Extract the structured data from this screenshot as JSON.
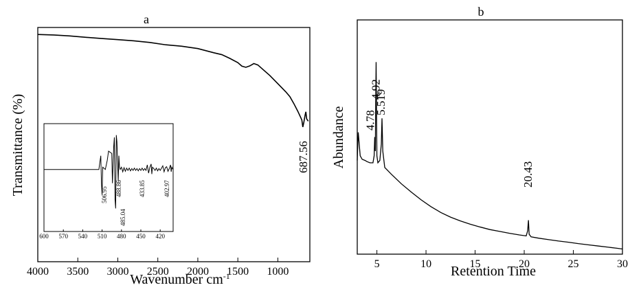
{
  "chart_data": [
    {
      "panel": "a",
      "type": "line",
      "xlabel": "Wavenumber cm",
      "xlabel_sup": "-1",
      "ylabel": "Transmittance (%)",
      "xlim": [
        4000,
        600
      ],
      "ylim": [
        0,
        100
      ],
      "x_ticks": [
        4000,
        3500,
        3000,
        2500,
        2000,
        1500,
        1000
      ],
      "grid": false,
      "series": [
        {
          "x": [
            4000,
            3800,
            3600,
            3400,
            3200,
            3000,
            2800,
            2600,
            2400,
            2200,
            2000,
            1800,
            1700,
            1600,
            1500,
            1450,
            1400,
            1350,
            1300,
            1250,
            1200,
            1100,
            1000,
            900,
            850,
            800,
            750,
            720,
            700,
            688,
            675,
            660,
            650,
            640,
            620
          ],
          "y": [
            97,
            96.8,
            96.4,
            95.8,
            95.3,
            94.8,
            94.3,
            93.6,
            92.6,
            92,
            91,
            89.2,
            88.4,
            86.8,
            85,
            83.5,
            83,
            83.6,
            84.6,
            84,
            82.5,
            79.5,
            76,
            72.5,
            70.5,
            67.5,
            64.2,
            62,
            60.5,
            57.5,
            59.5,
            62.5,
            64,
            61,
            60
          ]
        }
      ],
      "annotations": [
        {
          "text": "687.56",
          "x": 688
        }
      ],
      "inset": {
        "type": "line",
        "xlim": [
          600,
          400
        ],
        "ylim": [
          -1,
          1
        ],
        "x_ticks": [
          600,
          570,
          540,
          510,
          480,
          450,
          420
        ],
        "peak_labels": [
          "506.95",
          "488.86",
          "485.04",
          "433.85",
          "402.97"
        ],
        "series": [
          {
            "x": [
              600,
              515,
              513,
              512,
              511,
              510,
              509,
              505,
              502,
              501,
              500,
              495,
              494,
              493,
              492,
              491,
              490,
              489,
              488,
              487,
              486,
              485,
              484,
              483,
              482,
              480,
              478,
              476,
              474,
              472,
              470,
              468,
              466,
              464,
              462,
              460,
              458,
              456,
              454,
              452,
              450,
              448,
              446,
              444,
              442,
              440,
              438,
              436,
              434,
              433,
              432,
              430,
              428,
              426,
              424,
              422,
              420,
              418,
              416,
              414,
              412,
              410,
              408,
              406,
              404,
              403,
              402,
              401,
              400
            ],
            "y": [
              0,
              0,
              0.2,
              0.3,
              -0.3,
              -0.55,
              0.05,
              0,
              0.2,
              0.3,
              0.4,
              0.35,
              -0.3,
              0.1,
              0.5,
              0.7,
              -0.65,
              -0.85,
              0.75,
              0.6,
              0.15,
              -0.25,
              0.3,
              0.05,
              0,
              0.05,
              -0.05,
              0.04,
              -0.04,
              0.03,
              -0.02,
              0.03,
              -0.03,
              0.02,
              -0.02,
              0.03,
              -0.02,
              0.02,
              -0.03,
              0.02,
              -0.02,
              0.03,
              -0.02,
              0.02,
              -0.02,
              0.1,
              -0.08,
              0.05,
              0.12,
              -0.1,
              0.05,
              0.02,
              -0.02,
              0.03,
              -0.03,
              0.02,
              -0.02,
              0.03,
              0.08,
              -0.05,
              0.04,
              0.06,
              -0.04,
              0.02,
              0.1,
              -0.05,
              0.05,
              0.02,
              0
            ]
          }
        ]
      }
    },
    {
      "panel": "b",
      "type": "line",
      "xlabel": "Retention Time",
      "ylabel": "Abundance",
      "xlim": [
        3,
        30
      ],
      "ylim": [
        0,
        100
      ],
      "x_ticks": [
        5,
        10,
        15,
        20,
        25,
        30
      ],
      "grid": false,
      "series": [
        {
          "x": [
            3.0,
            3.1,
            3.2,
            3.3,
            3.5,
            3.8,
            4.0,
            4.3,
            4.6,
            4.72,
            4.78,
            4.84,
            4.88,
            4.92,
            4.96,
            5.0,
            5.1,
            5.3,
            5.45,
            5.519,
            5.6,
            5.8,
            6.5,
            7.5,
            8.5,
            9.5,
            10.5,
            11.5,
            12.5,
            13.5,
            14.5,
            15.5,
            16.5,
            17.5,
            18.5,
            19.5,
            20.2,
            20.35,
            20.43,
            20.5,
            20.7,
            21.5,
            22.5,
            23.5,
            24.5,
            25.5,
            26.5,
            27.5,
            28.5,
            29.5,
            30
          ],
          "y": [
            40,
            52,
            47,
            42,
            40.5,
            40,
            39.5,
            39,
            39,
            42,
            50,
            44,
            65,
            82,
            62,
            42,
            39,
            40,
            47,
            58,
            44,
            37,
            34,
            30,
            26.5,
            23.2,
            20.3,
            17.8,
            15.8,
            14.2,
            12.8,
            11.6,
            10.5,
            9.7,
            8.9,
            8.2,
            7.8,
            10,
            14.5,
            8.5,
            7.4,
            6.8,
            6.2,
            5.6,
            5.1,
            4.5,
            4,
            3.5,
            3,
            2.5,
            2.2
          ]
        }
      ],
      "annotations": [
        {
          "text": "4.78",
          "x": 4.78
        },
        {
          "text": "4.92",
          "x": 4.92
        },
        {
          "text": "5.519",
          "x": 5.519
        },
        {
          "text": "20.43",
          "x": 20.43
        }
      ]
    }
  ]
}
